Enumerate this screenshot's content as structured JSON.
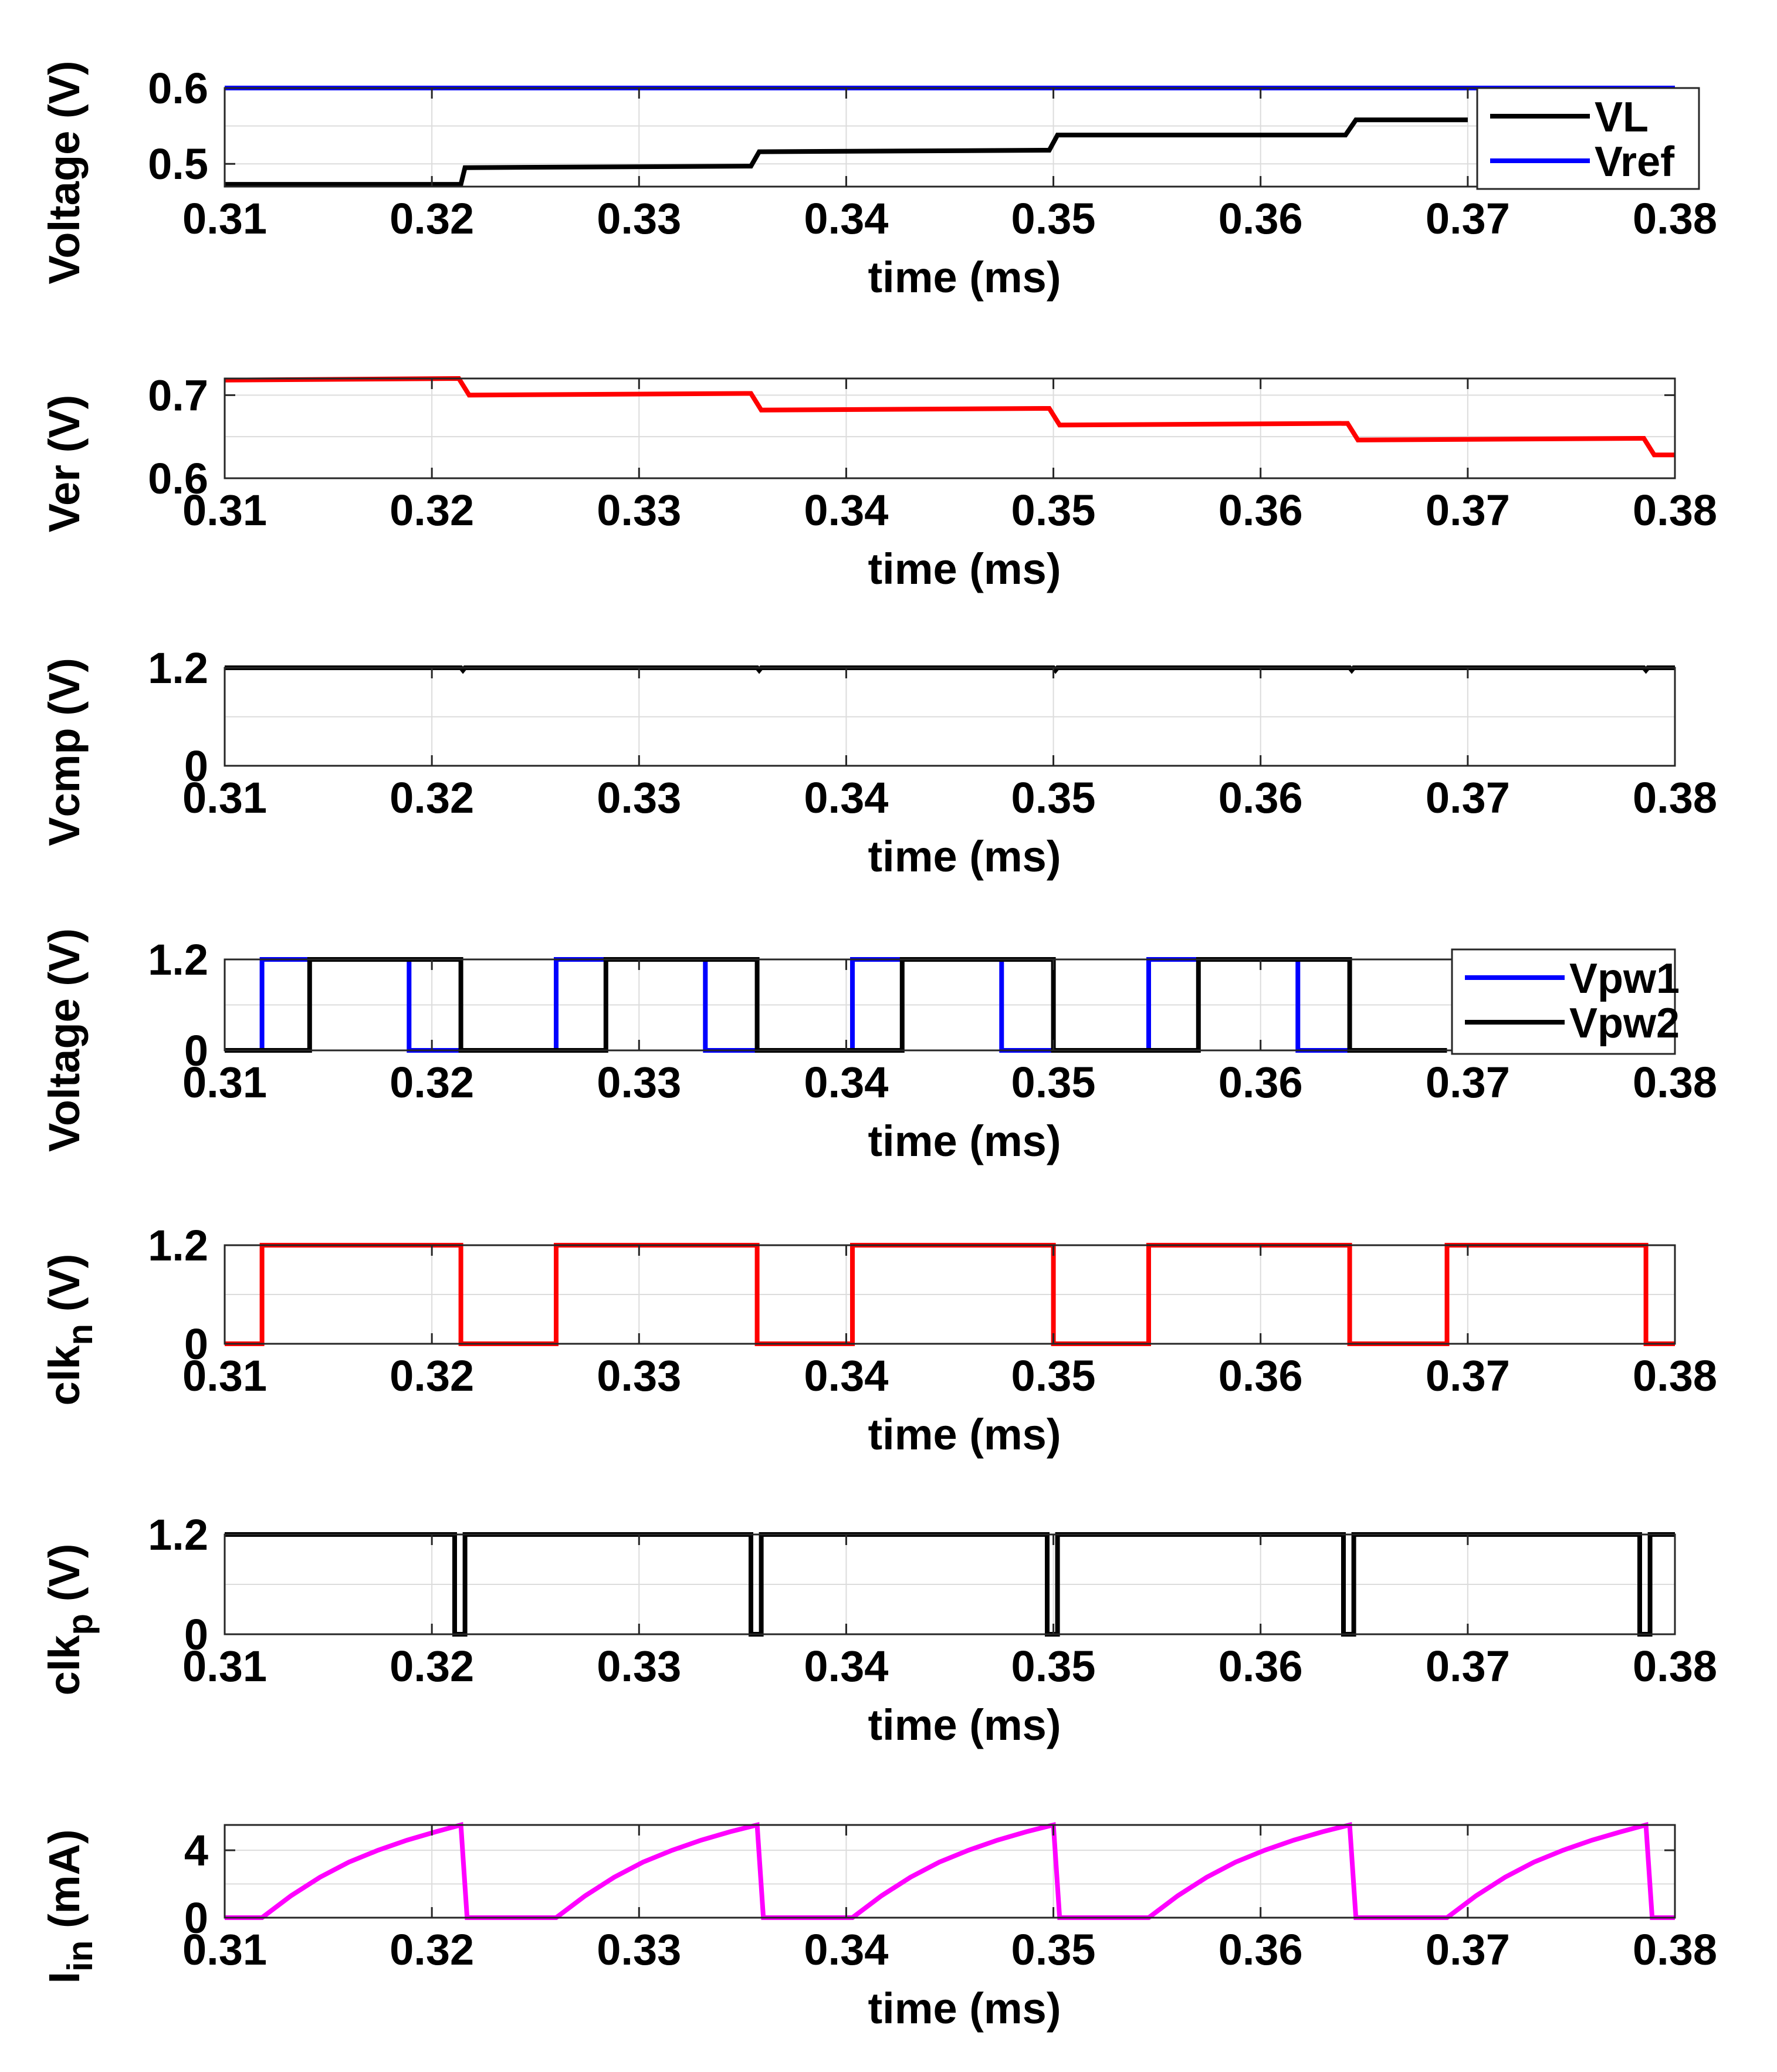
{
  "chart_data": [
    {
      "id": "p1",
      "type": "line",
      "xlim": [
        0.31,
        0.38
      ],
      "ylim": [
        0.47,
        0.6
      ],
      "xticks": [
        0.31,
        0.32,
        0.33,
        0.34,
        0.35,
        0.36,
        0.37,
        0.38
      ],
      "xtick_labels": [
        "0.31",
        "0.32",
        "0.33",
        "0.34",
        "0.35",
        "0.36",
        "0.37",
        "0.38"
      ],
      "yticks": [
        0.5,
        0.6
      ],
      "ytick_labels": [
        "0.5",
        "0.6"
      ],
      "xlabel": "time (ms)",
      "ylabel": "Voltage (V)",
      "grid": true,
      "legend": "top-right",
      "series": [
        {
          "name": "VL",
          "color": "#000000",
          "x": [
            0.31,
            0.3214,
            0.3216,
            0.3354,
            0.3358,
            0.3498,
            0.3502,
            0.3641,
            0.3646,
            0.37
          ],
          "y": [
            0.473,
            0.473,
            0.495,
            0.497,
            0.516,
            0.518,
            0.538,
            0.538,
            0.558,
            0.558
          ]
        },
        {
          "name": "Vref",
          "color": "#0000ff",
          "x": [
            0.31,
            0.38
          ],
          "y": [
            0.6,
            0.6
          ]
        }
      ]
    },
    {
      "id": "p2",
      "type": "line",
      "xlim": [
        0.31,
        0.38
      ],
      "ylim": [
        0.6,
        0.72
      ],
      "xticks": [
        0.31,
        0.32,
        0.33,
        0.34,
        0.35,
        0.36,
        0.37,
        0.38
      ],
      "xtick_labels": [
        "0.31",
        "0.32",
        "0.33",
        "0.34",
        "0.35",
        "0.36",
        "0.37",
        "0.38"
      ],
      "yticks": [
        0.6,
        0.7
      ],
      "ytick_labels": [
        "0.6",
        "0.7"
      ],
      "xlabel": "time (ms)",
      "ylabel": "Ver (V)",
      "grid": true,
      "series": [
        {
          "name": "Ver",
          "color": "#ff0000",
          "x": [
            0.31,
            0.3213,
            0.3218,
            0.3354,
            0.3359,
            0.3498,
            0.3503,
            0.3642,
            0.3647,
            0.3785,
            0.379,
            0.38
          ],
          "y": [
            0.718,
            0.72,
            0.7,
            0.702,
            0.682,
            0.684,
            0.664,
            0.666,
            0.646,
            0.648,
            0.628,
            0.628
          ]
        }
      ]
    },
    {
      "id": "p3",
      "type": "line",
      "xlim": [
        0.31,
        0.38
      ],
      "ylim": [
        0,
        1.2
      ],
      "xticks": [
        0.31,
        0.32,
        0.33,
        0.34,
        0.35,
        0.36,
        0.37,
        0.38
      ],
      "xtick_labels": [
        "0.31",
        "0.32",
        "0.33",
        "0.34",
        "0.35",
        "0.36",
        "0.37",
        "0.38"
      ],
      "yticks": [
        0,
        1.2
      ],
      "ytick_labels": [
        "0",
        "1.2"
      ],
      "xlabel": "time (ms)",
      "ylabel": "Vcmp (V)",
      "grid": true,
      "series": [
        {
          "name": "Vcmp",
          "color": "#000000",
          "x": [
            0.31,
            0.3214,
            0.3215,
            0.3216,
            0.3357,
            0.3358,
            0.3359,
            0.35,
            0.3501,
            0.3502,
            0.3643,
            0.3644,
            0.3645,
            0.3785,
            0.3786,
            0.3787,
            0.38
          ],
          "y": [
            1.2,
            1.2,
            1.17,
            1.2,
            1.2,
            1.17,
            1.2,
            1.2,
            1.17,
            1.2,
            1.2,
            1.17,
            1.2,
            1.2,
            1.17,
            1.2,
            1.2
          ]
        }
      ]
    },
    {
      "id": "p4",
      "type": "line",
      "xlim": [
        0.31,
        0.38
      ],
      "ylim": [
        0,
        1.2
      ],
      "xticks": [
        0.31,
        0.32,
        0.33,
        0.34,
        0.35,
        0.36,
        0.37,
        0.38
      ],
      "xtick_labels": [
        "0.31",
        "0.32",
        "0.33",
        "0.34",
        "0.35",
        "0.36",
        "0.37",
        "0.38"
      ],
      "yticks": [
        0,
        1.2
      ],
      "ytick_labels": [
        "0",
        "1.2"
      ],
      "xlabel": "time (ms)",
      "ylabel": "Voltage (V)",
      "grid": true,
      "legend": "top-right",
      "series": [
        {
          "name": "Vpw1",
          "color": "#0000ff",
          "x": [
            0.31,
            0.3118,
            0.3118,
            0.3189,
            0.3189,
            0.326,
            0.326,
            0.3332,
            0.3332,
            0.3403,
            0.3403,
            0.3475,
            0.3475,
            0.3546,
            0.3546,
            0.3618,
            0.3618,
            0.369
          ],
          "y": [
            0,
            0,
            1.2,
            1.2,
            0,
            0,
            1.2,
            1.2,
            0,
            0,
            1.2,
            1.2,
            0,
            0,
            1.2,
            1.2,
            0,
            0
          ]
        },
        {
          "name": "Vpw2",
          "color": "#000000",
          "x": [
            0.31,
            0.3141,
            0.3141,
            0.3214,
            0.3214,
            0.3284,
            0.3284,
            0.3357,
            0.3357,
            0.3427,
            0.3427,
            0.35,
            0.35,
            0.357,
            0.357,
            0.3643,
            0.3643,
            0.369
          ],
          "y": [
            0,
            0,
            1.2,
            1.2,
            0,
            0,
            1.2,
            1.2,
            0,
            0,
            1.2,
            1.2,
            0,
            0,
            1.2,
            1.2,
            0,
            0
          ]
        }
      ]
    },
    {
      "id": "p5",
      "type": "line",
      "xlim": [
        0.31,
        0.38
      ],
      "ylim": [
        0,
        1.2
      ],
      "xticks": [
        0.31,
        0.32,
        0.33,
        0.34,
        0.35,
        0.36,
        0.37,
        0.38
      ],
      "xtick_labels": [
        "0.31",
        "0.32",
        "0.33",
        "0.34",
        "0.35",
        "0.36",
        "0.37",
        "0.38"
      ],
      "yticks": [
        0,
        1.2
      ],
      "ytick_labels": [
        "0",
        "1.2"
      ],
      "xlabel": "time (ms)",
      "ylabel_base": "clk",
      "ylabel_sub": "n",
      "ylabel_suffix": " (V)",
      "grid": true,
      "series": [
        {
          "name": "clkn",
          "color": "#ff0000",
          "x": [
            0.31,
            0.3118,
            0.3118,
            0.3214,
            0.3214,
            0.326,
            0.326,
            0.3357,
            0.3357,
            0.3403,
            0.3403,
            0.35,
            0.35,
            0.3546,
            0.3546,
            0.3643,
            0.3643,
            0.369,
            0.369,
            0.3786,
            0.3786,
            0.38
          ],
          "y": [
            0,
            0,
            1.2,
            1.2,
            0,
            0,
            1.2,
            1.2,
            0,
            0,
            1.2,
            1.2,
            0,
            0,
            1.2,
            1.2,
            0,
            0,
            1.2,
            1.2,
            0,
            0
          ]
        }
      ]
    },
    {
      "id": "p6",
      "type": "line",
      "xlim": [
        0.31,
        0.38
      ],
      "ylim": [
        0,
        1.2
      ],
      "xticks": [
        0.31,
        0.32,
        0.33,
        0.34,
        0.35,
        0.36,
        0.37,
        0.38
      ],
      "xtick_labels": [
        "0.31",
        "0.32",
        "0.33",
        "0.34",
        "0.35",
        "0.36",
        "0.37",
        "0.38"
      ],
      "yticks": [
        0,
        1.2
      ],
      "ytick_labels": [
        "0",
        "1.2"
      ],
      "xlabel": "time (ms)",
      "ylabel_base": "clk",
      "ylabel_sub": "p",
      "ylabel_suffix": " (V)",
      "grid": true,
      "series": [
        {
          "name": "clkp",
          "color": "#000000",
          "x": [
            0.31,
            0.3211,
            0.3211,
            0.3216,
            0.3216,
            0.3354,
            0.3354,
            0.3359,
            0.3359,
            0.3497,
            0.3497,
            0.3502,
            0.3502,
            0.364,
            0.364,
            0.3645,
            0.3645,
            0.3783,
            0.3783,
            0.3788,
            0.3788,
            0.38
          ],
          "y": [
            1.2,
            1.2,
            0,
            0,
            1.2,
            1.2,
            0,
            0,
            1.2,
            1.2,
            0,
            0,
            1.2,
            1.2,
            0,
            0,
            1.2,
            1.2,
            0,
            0,
            1.2,
            1.2
          ]
        }
      ]
    },
    {
      "id": "p7",
      "type": "line",
      "xlim": [
        0.31,
        0.38
      ],
      "ylim": [
        0,
        5.5
      ],
      "xticks": [
        0.31,
        0.32,
        0.33,
        0.34,
        0.35,
        0.36,
        0.37,
        0.38
      ],
      "xtick_labels": [
        "0.31",
        "0.32",
        "0.33",
        "0.34",
        "0.35",
        "0.36",
        "0.37",
        "0.38"
      ],
      "yticks": [
        0,
        4
      ],
      "ytick_labels": [
        "0",
        "4"
      ],
      "xlabel": "time (ms)",
      "ylabel_base": "I",
      "ylabel_sub": "in",
      "ylabel_suffix": " (mA)",
      "grid": true,
      "series": [
        {
          "name": "Iin",
          "color": "#ff00ff",
          "x": [
            0.31,
            0.3118,
            0.3132,
            0.3146,
            0.316,
            0.3174,
            0.3188,
            0.3202,
            0.3214,
            0.3217,
            0.326,
            0.3274,
            0.3288,
            0.3302,
            0.3316,
            0.333,
            0.3344,
            0.3357,
            0.336,
            0.3403,
            0.3417,
            0.3431,
            0.3445,
            0.3459,
            0.3473,
            0.3487,
            0.35,
            0.3503,
            0.3546,
            0.356,
            0.3574,
            0.3588,
            0.3602,
            0.3616,
            0.363,
            0.3643,
            0.3646,
            0.369,
            0.3704,
            0.3718,
            0.3732,
            0.3746,
            0.376,
            0.3774,
            0.3786,
            0.3789,
            0.38
          ],
          "y": [
            0,
            0,
            1.3,
            2.4,
            3.3,
            4.0,
            4.6,
            5.1,
            5.5,
            0,
            0,
            1.3,
            2.4,
            3.3,
            4.0,
            4.6,
            5.1,
            5.5,
            0,
            0,
            1.3,
            2.4,
            3.3,
            4.0,
            4.6,
            5.1,
            5.5,
            0,
            0,
            1.3,
            2.4,
            3.3,
            4.0,
            4.6,
            5.1,
            5.5,
            0,
            0,
            1.3,
            2.4,
            3.3,
            4.0,
            4.6,
            5.1,
            5.5,
            0,
            0
          ]
        }
      ]
    }
  ]
}
